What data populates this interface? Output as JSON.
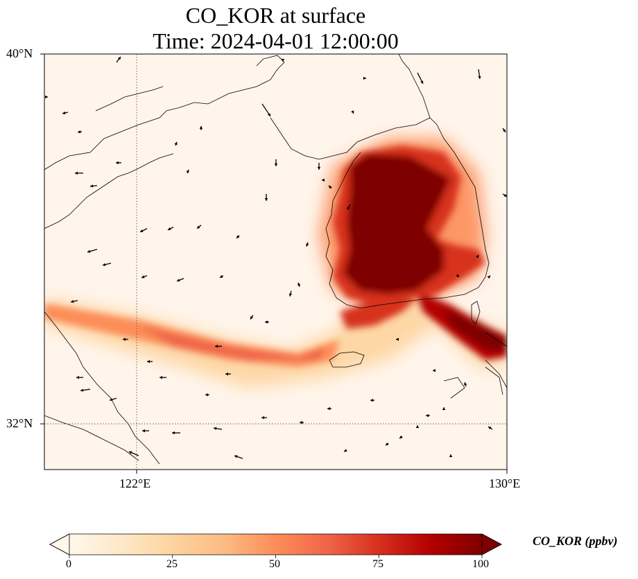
{
  "figure": {
    "title_line1": "CO_KOR at surface",
    "title_line2": "Time: 2024-04-01 12:00:00"
  },
  "map": {
    "extent": {
      "lon_min": 119.6,
      "lon_max": 130.0,
      "lat_min": 31.0,
      "lat_max": 40.0
    },
    "gridlines": {
      "lons": [
        122
      ],
      "lats": [
        32
      ],
      "style": "dotted"
    },
    "lat_ticks": [
      {
        "value": 40,
        "label": "40°N"
      },
      {
        "value": 32,
        "label": "32°N"
      }
    ],
    "lon_ticks": [
      {
        "value": 122,
        "label": "122°E"
      },
      {
        "value": 130,
        "label": "130°E"
      }
    ],
    "background_color": "#fff5eb",
    "coastline_color": "#000000"
  },
  "colorbar": {
    "label": "CO_KOR (ppbv)",
    "min": 0,
    "max": 100,
    "ticks": [
      0,
      25,
      50,
      75,
      100
    ],
    "tick_labels": [
      "0",
      "25",
      "50",
      "75",
      "100"
    ],
    "extend": "both",
    "colormap": "OrRd",
    "colors": [
      "#fff7ec",
      "#fee8c8",
      "#fdd49e",
      "#fdbb84",
      "#fc8d59",
      "#ef6548",
      "#d7301f",
      "#b30000",
      "#7f0000"
    ]
  },
  "chart_data": {
    "type": "heatmap",
    "variable": "CO_KOR",
    "units": "ppbv",
    "level": "surface",
    "time": "2024-04-01 12:00:00",
    "plumes": [
      {
        "name": "Korean Peninsula source region",
        "lon_range": [
          126.5,
          129.2
        ],
        "lat_range": [
          34.3,
          38.2
        ],
        "value_ppbv": 100
      },
      {
        "name": "Westward band over Yellow Sea",
        "points": [
          [
            119.6,
            33.1
          ],
          [
            122.0,
            32.9
          ],
          [
            124.5,
            32.6
          ],
          [
            126.0,
            32.4
          ],
          [
            127.0,
            33.2
          ]
        ],
        "value_ppbv": 65
      },
      {
        "name": "South-east band toward Tsushima",
        "points": [
          [
            128.2,
            34.6
          ],
          [
            129.2,
            33.9
          ],
          [
            130.0,
            33.3
          ]
        ],
        "value_ppbv": 90
      }
    ],
    "wind_vectors": "quiver arrows, mostly westerly/north-westerly flow over the sea"
  }
}
